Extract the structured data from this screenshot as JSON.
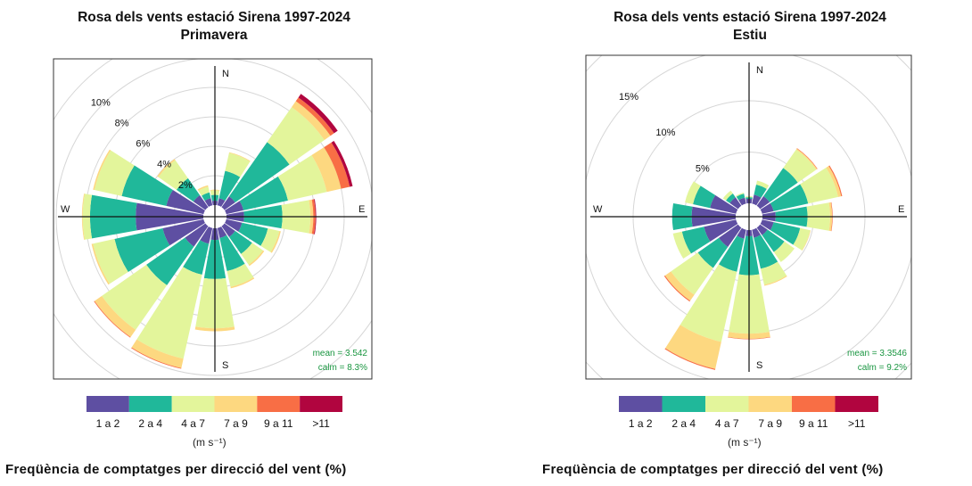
{
  "legend": {
    "bins": [
      "1 a 2",
      "2 a 4",
      "4 a 7",
      "7 a 9",
      "9 a 11",
      ">11"
    ],
    "colors": [
      "#5E4FA2",
      "#20B89A",
      "#E3F59B",
      "#FDD880",
      "#F86E45",
      "#B1053F"
    ],
    "units": "(m s⁻¹)"
  },
  "chart_data": [
    {
      "type": "wind-rose",
      "title": "Rosa dels vents estació Sirena 1997-2024",
      "subtitle": "Primavera",
      "xlabel": "Freqüència de comptatges per direcció del vent (%)",
      "compass_labels": [
        "N",
        "E",
        "S",
        "W"
      ],
      "directions": [
        "N",
        "NNE",
        "NE",
        "ENE",
        "E",
        "ESE",
        "SE",
        "SSE",
        "S",
        "SSW",
        "SW",
        "WSW",
        "W",
        "WNW",
        "NW",
        "NNW"
      ],
      "value_encoding": "cumulative percent per speed bin",
      "series": [
        {
          "name": "1 a 2",
          "values": [
            0.3,
            0.5,
            0.9,
            1.2,
            1.2,
            1.1,
            0.9,
            0.7,
            0.8,
            1.1,
            1.7,
            2.85,
            4.6,
            2.6,
            1.0,
            0.5
          ]
        },
        {
          "name": "2 a 4",
          "values": [
            0.7,
            2.4,
            5.4,
            4.3,
            3.8,
            2.9,
            2.3,
            3.0,
            3.45,
            3.25,
            4.9,
            6.2,
            7.7,
            5.7,
            2.4,
            0.9
          ]
        },
        {
          "name": "4 a 7",
          "values": [
            1.0,
            3.65,
            8.3,
            7.0,
            5.7,
            3.7,
            3.2,
            4.1,
            6.8,
            9.1,
            8.6,
            7.7,
            8.2,
            7.6,
            3.9,
            1.3
          ]
        },
        {
          "name": "7 a 9",
          "values": [
            1.05,
            3.7,
            8.8,
            8.0,
            5.9,
            3.8,
            3.3,
            4.2,
            7.0,
            9.75,
            9.2,
            7.8,
            8.25,
            7.7,
            4.0,
            1.4
          ]
        },
        {
          "name": "9 a 11",
          "values": [
            1.05,
            3.7,
            9.1,
            8.6,
            6.05,
            3.8,
            3.3,
            4.2,
            7.0,
            9.8,
            9.25,
            7.8,
            8.25,
            7.7,
            4.0,
            1.4
          ]
        },
        {
          "name": ">11",
          "values": [
            1.05,
            3.7,
            9.4,
            8.8,
            6.1,
            3.8,
            3.3,
            4.2,
            7.0,
            9.8,
            9.25,
            7.8,
            8.25,
            7.7,
            4.0,
            1.4
          ]
        }
      ],
      "ring_ticks": [
        2,
        4,
        6,
        8,
        10,
        12
      ],
      "ring_tick_labels": [
        "2%",
        "4%",
        "6%",
        "8%",
        "10%"
      ],
      "mean_label": "mean = 3.542",
      "calm_label": "calm = 8.3%"
    },
    {
      "type": "wind-rose",
      "title": "Rosa dels vents estació Sirena 1997-2024",
      "subtitle": "Estiu",
      "xlabel": "Freqüència de comptatges per direcció del vent (%)",
      "compass_labels": [
        "N",
        "E",
        "S",
        "W"
      ],
      "directions": [
        "N",
        "NNE",
        "NE",
        "ENE",
        "E",
        "ESE",
        "SE",
        "SSE",
        "S",
        "SSW",
        "SW",
        "WSW",
        "W",
        "WNW",
        "NW",
        "NNW"
      ],
      "value_encoding": "cumulative percent per speed bin",
      "series": [
        {
          "name": "1 a 2",
          "values": [
            0.45,
            0.9,
            1.15,
            1.15,
            1.3,
            1.15,
            0.9,
            0.8,
            0.6,
            0.9,
            2.3,
            3.2,
            4.3,
            2.6,
            1.0,
            0.6
          ]
        },
        {
          "name": "2 a 4",
          "values": [
            0.6,
            1.9,
            4.5,
            4.6,
            4.4,
            3.8,
            2.9,
            3.9,
            4.4,
            4.2,
            4.8,
            5.4,
            6.2,
            4.3,
            1.45,
            1.0
          ]
        },
        {
          "name": "4 a 7",
          "values": [
            0.7,
            2.3,
            6.7,
            7.6,
            6.6,
            4.8,
            4.1,
            5.5,
            10.1,
            11.2,
            8.0,
            6.3,
            6.2,
            5.1,
            1.8,
            1.1
          ]
        },
        {
          "name": "7 a 9",
          "values": [
            0.7,
            2.3,
            6.8,
            7.9,
            6.8,
            4.85,
            4.1,
            5.6,
            10.6,
            13.9,
            8.7,
            6.3,
            6.2,
            5.1,
            1.8,
            1.1
          ]
        },
        {
          "name": "9 a 11",
          "values": [
            0.7,
            2.3,
            6.85,
            8.0,
            6.85,
            4.85,
            4.1,
            5.6,
            10.65,
            14.0,
            8.8,
            6.3,
            6.2,
            5.1,
            1.8,
            1.1
          ]
        },
        {
          "name": ">11",
          "values": [
            0.7,
            2.3,
            6.85,
            8.0,
            6.85,
            4.85,
            4.1,
            5.6,
            10.65,
            14.0,
            8.8,
            6.3,
            6.2,
            5.1,
            1.8,
            1.1
          ]
        }
      ],
      "ring_ticks": [
        5,
        10,
        15,
        20
      ],
      "ring_tick_labels": [
        "5%",
        "10%",
        "15%"
      ],
      "mean_label": "mean = 3.3546",
      "calm_label": "calm = 9.2%"
    }
  ]
}
